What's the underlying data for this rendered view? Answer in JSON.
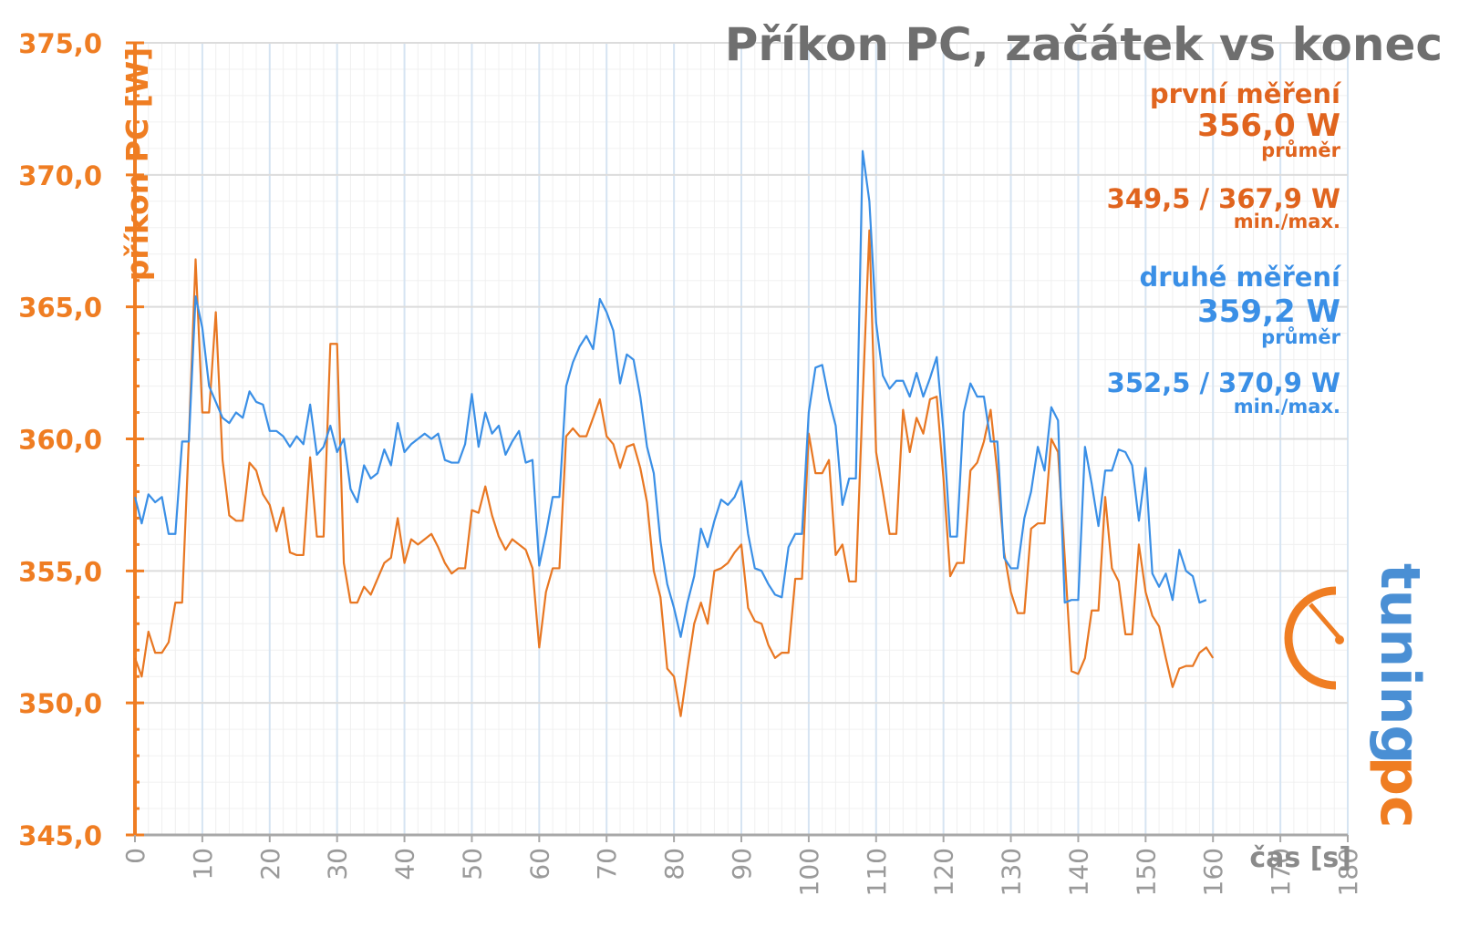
{
  "chart_data": {
    "type": "line",
    "title": "Příkon PC, začátek vs konec",
    "xlabel": "čas [s]",
    "ylabel": "příkon PC [W]",
    "xlim": [
      0,
      180
    ],
    "ylim": [
      345,
      375
    ],
    "x_ticks": [
      "0",
      "10",
      "20",
      "30",
      "40",
      "50",
      "60",
      "70",
      "80",
      "90",
      "100",
      "110",
      "120",
      "130",
      "140",
      "150",
      "160",
      "170",
      "180"
    ],
    "y_ticks": [
      "345,0",
      "350,0",
      "355,0",
      "360,0",
      "365,0",
      "370,0",
      "375,0"
    ],
    "grid": true,
    "colors": {
      "first": "#e87722",
      "second": "#3a8fe6"
    },
    "series": [
      {
        "name": "první měření",
        "avg": "356,0 W",
        "avg_label": "průměr",
        "minmax": "349,5 / 367,9 W",
        "minmax_label": "min./max.",
        "values": [
          351.7,
          351.0,
          352.7,
          351.9,
          351.9,
          352.3,
          353.8,
          353.8,
          360.0,
          366.8,
          361.0,
          361.0,
          364.8,
          359.2,
          357.1,
          356.9,
          356.9,
          359.1,
          358.8,
          357.9,
          357.5,
          356.5,
          357.4,
          355.7,
          355.6,
          355.6,
          359.3,
          356.3,
          356.3,
          363.6,
          363.6,
          355.3,
          353.8,
          353.8,
          354.4,
          354.1,
          354.7,
          355.3,
          355.5,
          357.0,
          355.3,
          356.2,
          356.0,
          356.2,
          356.4,
          355.9,
          355.3,
          354.9,
          355.1,
          355.1,
          357.3,
          357.2,
          358.2,
          357.1,
          356.3,
          355.8,
          356.2,
          356.0,
          355.8,
          355.1,
          352.1,
          354.2,
          355.1,
          355.1,
          360.1,
          360.4,
          360.1,
          360.1,
          360.8,
          361.5,
          360.1,
          359.8,
          358.9,
          359.7,
          359.8,
          358.9,
          357.6,
          355.0,
          354.0,
          351.3,
          351.0,
          349.5,
          351.3,
          353.0,
          353.8,
          353.0,
          355.0,
          355.1,
          355.3,
          355.7,
          356.0,
          353.6,
          353.1,
          353.0,
          352.2,
          351.7,
          351.9,
          351.9,
          354.7,
          354.7,
          360.2,
          358.7,
          358.7,
          359.2,
          355.6,
          356.0,
          354.6,
          354.6,
          361.5,
          367.9,
          359.5,
          358.0,
          356.4,
          356.4,
          361.1,
          359.5,
          360.8,
          360.2,
          361.5,
          361.6,
          358.5,
          354.8,
          355.3,
          355.3,
          358.8,
          359.1,
          359.9,
          361.1,
          358.7,
          355.7,
          354.2,
          353.4,
          353.4,
          356.6,
          356.8,
          356.8,
          360.0,
          359.5,
          355.5,
          351.2,
          351.1,
          351.7,
          353.5,
          353.5,
          357.8,
          355.1,
          354.6,
          352.6,
          352.6,
          356.0,
          354.2,
          353.3,
          352.9,
          351.7,
          350.6,
          351.3,
          351.4,
          351.4,
          351.9,
          352.1,
          351.7
        ]
      },
      {
        "name": "druhé měření",
        "avg": "359,2 W",
        "avg_label": "průměr",
        "minmax": "352,5 / 370,9 W",
        "minmax_label": "min./max.",
        "values": [
          357.8,
          356.8,
          357.9,
          357.6,
          357.8,
          356.4,
          356.4,
          359.9,
          359.9,
          365.4,
          364.2,
          362.0,
          361.4,
          360.8,
          360.6,
          361.0,
          360.8,
          361.8,
          361.4,
          361.3,
          360.3,
          360.3,
          360.1,
          359.7,
          360.1,
          359.8,
          361.3,
          359.4,
          359.7,
          360.5,
          359.5,
          360.0,
          358.1,
          357.6,
          359.0,
          358.5,
          358.7,
          359.6,
          359.0,
          360.6,
          359.5,
          359.8,
          360.0,
          360.2,
          360.0,
          360.2,
          359.2,
          359.1,
          359.1,
          359.8,
          361.7,
          359.7,
          361.0,
          360.2,
          360.5,
          359.4,
          359.9,
          360.3,
          359.1,
          359.2,
          355.2,
          356.4,
          357.8,
          357.8,
          362.0,
          362.9,
          363.5,
          363.9,
          363.4,
          365.3,
          364.8,
          364.1,
          362.1,
          363.2,
          363.0,
          361.6,
          359.7,
          358.7,
          356.1,
          354.5,
          353.6,
          352.5,
          353.8,
          354.8,
          356.6,
          355.9,
          356.9,
          357.7,
          357.5,
          357.8,
          358.4,
          356.4,
          355.1,
          355.0,
          354.5,
          354.1,
          354.0,
          355.9,
          356.4,
          356.4,
          361.0,
          362.7,
          362.8,
          361.5,
          360.5,
          357.5,
          358.5,
          358.5,
          370.9,
          369.0,
          364.4,
          362.4,
          361.9,
          362.2,
          362.2,
          361.6,
          362.5,
          361.6,
          362.3,
          363.1,
          360.3,
          356.3,
          356.3,
          361.0,
          362.1,
          361.6,
          361.6,
          359.9,
          359.9,
          355.5,
          355.1,
          355.1,
          357.0,
          358.0,
          359.7,
          358.8,
          361.2,
          360.7,
          353.8,
          353.9,
          353.9,
          359.7,
          358.3,
          356.7,
          358.8,
          358.8,
          359.6,
          359.5,
          359.0,
          356.9,
          358.9,
          354.9,
          354.4,
          354.9,
          353.9,
          355.8,
          355.0,
          354.8,
          353.8,
          353.9
        ]
      }
    ],
    "x_step": 1
  },
  "logo": {
    "part1": "pc",
    "part2": "tuning"
  }
}
